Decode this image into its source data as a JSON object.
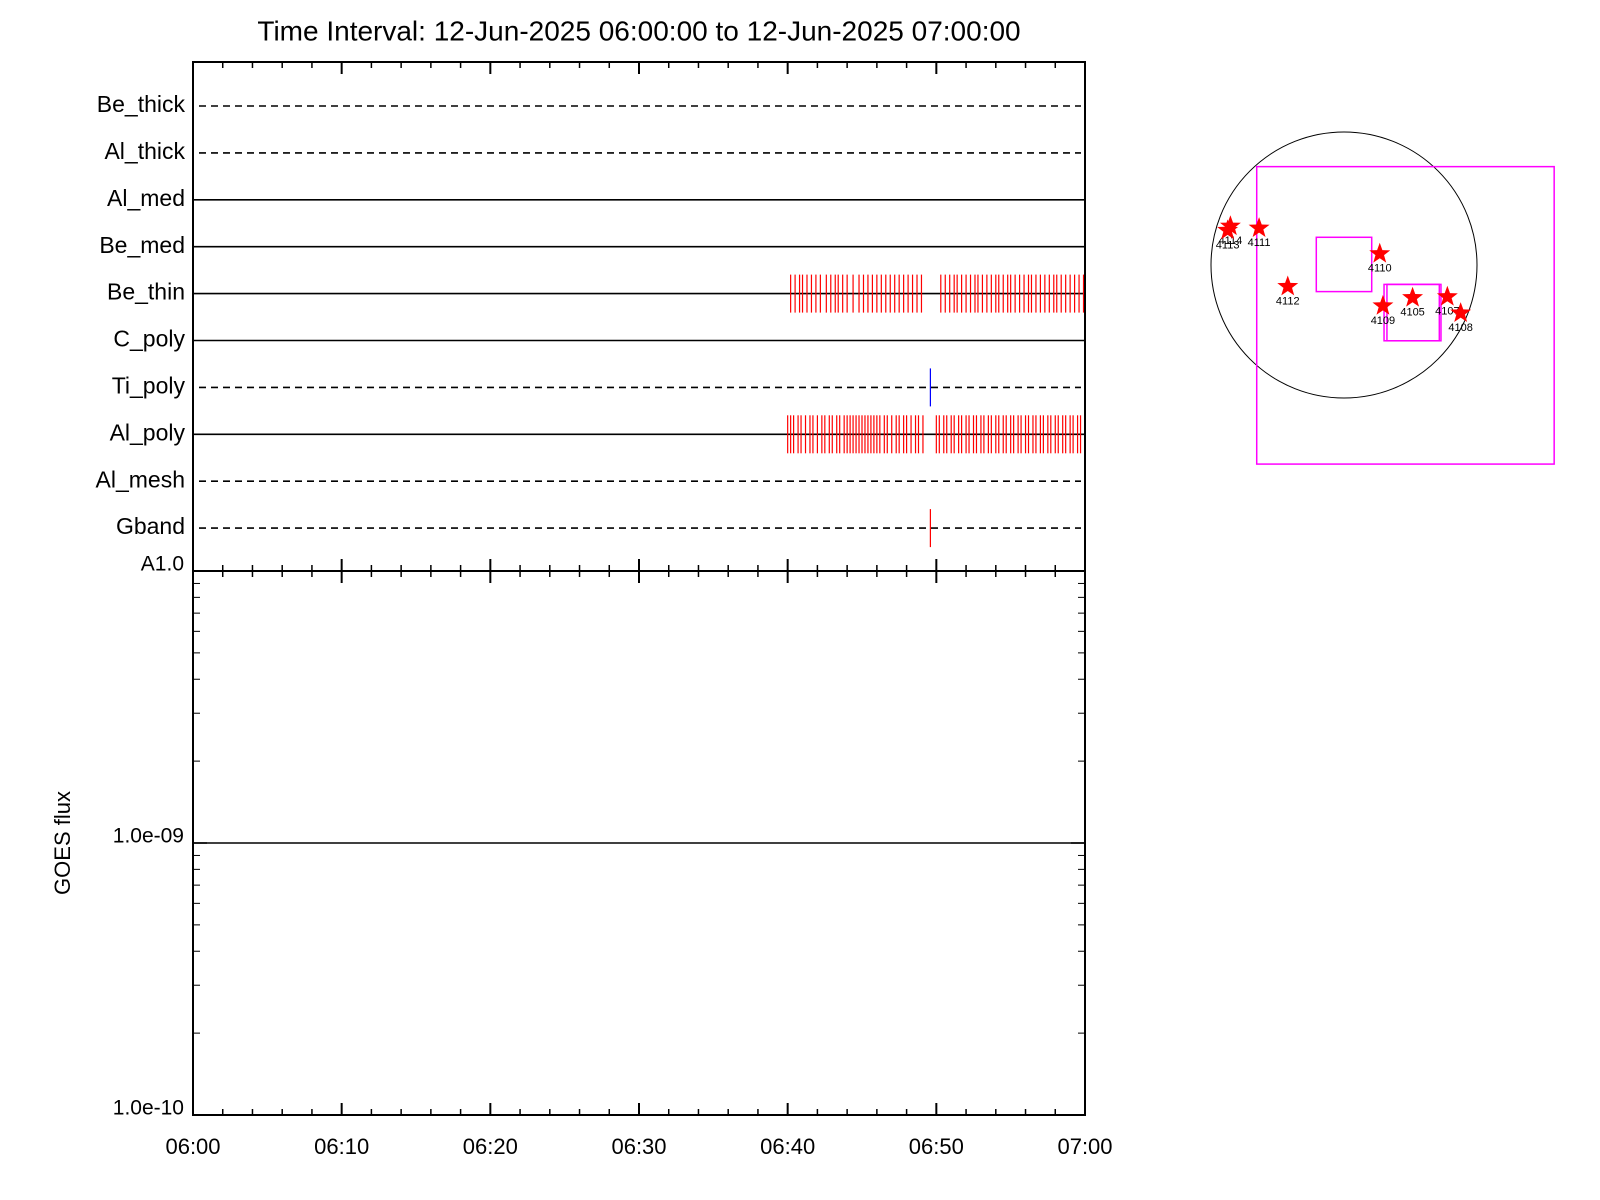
{
  "chart_data": [
    {
      "type": "events",
      "title": "Time Interval: 12-Jun-2025 06:00:00 to 12-Jun-2025 07:00:00",
      "categories": [
        "Be_thick",
        "Al_thick",
        "Al_med",
        "Be_med",
        "Be_thin",
        "C_poly",
        "Ti_poly",
        "Al_poly",
        "Al_mesh",
        "Gband"
      ],
      "line_styles": [
        "dashed",
        "dashed",
        "solid",
        "solid",
        "solid",
        "solid",
        "dashed",
        "solid",
        "dashed",
        "dashed"
      ],
      "event_colors": [
        null,
        null,
        null,
        null,
        "#ff0000",
        null,
        "#0000ff",
        "#ff0000",
        null,
        "#ff0000"
      ],
      "events": [
        [],
        [],
        [],
        [],
        [
          40.2,
          40.5,
          40.8,
          41.0,
          41.3,
          41.6,
          41.9,
          42.2,
          42.6,
          42.9,
          43.2,
          43.4,
          43.7,
          44.0,
          44.4,
          44.8,
          45.1,
          45.4,
          45.7,
          46.0,
          46.3,
          46.6,
          46.9,
          47.2,
          47.5,
          47.8,
          48.1,
          48.4,
          48.7,
          49.0,
          50.3,
          50.6,
          50.9,
          51.2,
          51.4,
          51.7,
          52.0,
          52.3,
          52.6,
          52.8,
          53.1,
          53.4,
          53.7,
          54.0,
          54.2,
          54.5,
          54.8,
          55.0,
          55.3,
          55.6,
          55.9,
          56.2,
          56.4,
          56.7,
          57.0,
          57.3,
          57.6,
          57.9,
          58.1,
          58.4,
          58.7,
          59.0,
          59.3,
          59.6,
          59.9
        ],
        [],
        [
          49.6
        ],
        [
          40.0,
          40.2,
          40.4,
          40.7,
          40.9,
          41.2,
          41.5,
          41.7,
          42.0,
          42.3,
          42.5,
          42.8,
          43.0,
          43.3,
          43.5,
          43.8,
          44.0,
          44.2,
          44.4,
          44.6,
          44.8,
          45.0,
          45.2,
          45.4,
          45.6,
          45.8,
          46.0,
          46.2,
          46.5,
          46.7,
          47.0,
          47.3,
          47.5,
          47.8,
          48.0,
          48.3,
          48.6,
          48.8,
          49.1,
          50.0,
          50.2,
          50.5,
          50.7,
          51.0,
          51.2,
          51.5,
          51.7,
          52.0,
          52.2,
          52.5,
          52.7,
          53.0,
          53.2,
          53.5,
          53.7,
          54.0,
          54.2,
          54.5,
          54.7,
          55.0,
          55.2,
          55.5,
          55.7,
          56.0,
          56.2,
          56.5,
          56.7,
          57.0,
          57.2,
          57.5,
          57.7,
          58.0,
          58.2,
          58.5,
          58.7,
          59.0,
          59.2,
          59.5,
          59.7,
          60.0
        ],
        [],
        [
          49.6
        ]
      ],
      "xlim": [
        0,
        60
      ],
      "xminorticks": [
        2,
        4,
        6,
        8,
        12,
        14,
        16,
        18,
        22,
        24,
        26,
        28,
        32,
        34,
        36,
        38,
        42,
        44,
        46,
        48,
        52,
        54,
        56,
        58
      ]
    },
    {
      "type": "line",
      "ylabel": "GOES flux",
      "log_y": true,
      "x": [
        0,
        60
      ],
      "series": [
        {
          "color": "#000000",
          "values": [
            1e-09,
            1e-09
          ]
        }
      ],
      "xlim": [
        0,
        60
      ],
      "xticks": [
        {
          "value": 0,
          "label": "06:00"
        },
        {
          "value": 10,
          "label": "06:10"
        },
        {
          "value": 20,
          "label": "06:20"
        },
        {
          "value": 30,
          "label": "06:30"
        },
        {
          "value": 40,
          "label": "06:40"
        },
        {
          "value": 50,
          "label": "06:50"
        },
        {
          "value": 60,
          "label": "07:00"
        }
      ],
      "xminorticks": [
        2,
        4,
        6,
        8,
        12,
        14,
        16,
        18,
        22,
        24,
        26,
        28,
        32,
        34,
        36,
        38,
        42,
        44,
        46,
        48,
        52,
        54,
        56,
        58
      ],
      "ylim": [
        1e-10,
        1e-08
      ],
      "yticks": [
        {
          "value": 1e-10,
          "label": "1.0e-10"
        },
        {
          "value": 1e-09,
          "label": "1.0e-09"
        },
        {
          "value": 1e-08,
          "label": "A1.0"
        }
      ],
      "yminorticks": [
        2e-10,
        3e-10,
        4e-10,
        5e-10,
        6e-10,
        7e-10,
        8e-10,
        9e-10,
        2e-09,
        3e-09,
        4e-09,
        5e-09,
        6e-09,
        7e-09,
        8e-09,
        9e-09
      ]
    },
    {
      "type": "map",
      "disk_radius": 960,
      "disk_color": "#000000",
      "box_color": "#ff00ff",
      "boxes": [
        {
          "xlim": [
            -630,
            1517
          ],
          "ylim": [
            -1437,
            710
          ]
        },
        {
          "xlim": [
            -200,
            200
          ],
          "ylim": [
            -192,
            200
          ]
        },
        {
          "xlim": [
            289,
            688
          ],
          "ylim": [
            -547,
            -140
          ]
        },
        {
          "xlim": [
            310,
            700
          ],
          "ylim": [
            -547,
            -140
          ]
        }
      ],
      "point_color": "#ff0000",
      "points": [
        {
          "label": "4114",
          "x": -820,
          "y": 280
        },
        {
          "label": "4113",
          "x": -840,
          "y": 250
        },
        {
          "label": "4111",
          "x": -613,
          "y": 266
        },
        {
          "label": "4110",
          "x": 258,
          "y": 81
        },
        {
          "label": "4112",
          "x": -406,
          "y": -155
        },
        {
          "label": "4109",
          "x": 281,
          "y": -295
        },
        {
          "label": "4105",
          "x": 495,
          "y": -236
        },
        {
          "label": "4107",
          "x": 746,
          "y": -229
        },
        {
          "label": "4108",
          "x": 842,
          "y": -347
        }
      ]
    }
  ]
}
